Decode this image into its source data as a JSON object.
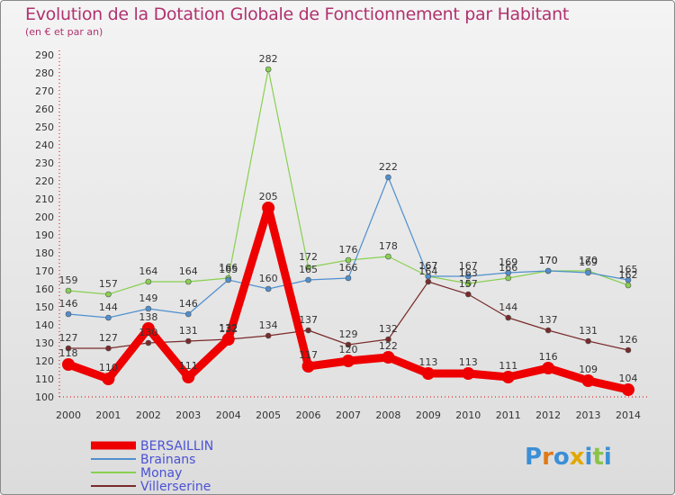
{
  "title": "Evolution de la Dotation Globale de Fonctionnement par Habitant",
  "subtitle": "(en € et par an)",
  "brand": "Proxiti",
  "chart_data": {
    "type": "line",
    "categories": [
      "2000",
      "2001",
      "2002",
      "2003",
      "2004",
      "2005",
      "2006",
      "2007",
      "2008",
      "2009",
      "2010",
      "2011",
      "2012",
      "2013",
      "2014"
    ],
    "ylim": [
      100,
      290
    ],
    "ytick_step": 10,
    "grid": false,
    "legend_position": "bottom-left",
    "series": [
      {
        "name": "BERSAILLIN",
        "color": "#ee0000",
        "values": [
          118,
          110,
          138,
          111,
          132,
          205,
          117,
          120,
          122,
          113,
          113,
          111,
          116,
          109,
          104
        ]
      },
      {
        "name": "Brainans",
        "color": "#4f8fcf",
        "values": [
          146,
          144,
          149,
          146,
          165,
          160,
          165,
          166,
          222,
          167,
          167,
          169,
          170,
          169,
          165
        ]
      },
      {
        "name": "Monay",
        "color": "#88d050",
        "values": [
          159,
          157,
          164,
          164,
          166,
          282,
          172,
          176,
          178,
          167,
          163,
          166,
          170,
          170,
          162
        ]
      },
      {
        "name": "Villerserine",
        "color": "#7a2a2a",
        "values": [
          127,
          127,
          130,
          131,
          132,
          134,
          137,
          129,
          132,
          164,
          157,
          144,
          137,
          131,
          126
        ]
      }
    ]
  }
}
